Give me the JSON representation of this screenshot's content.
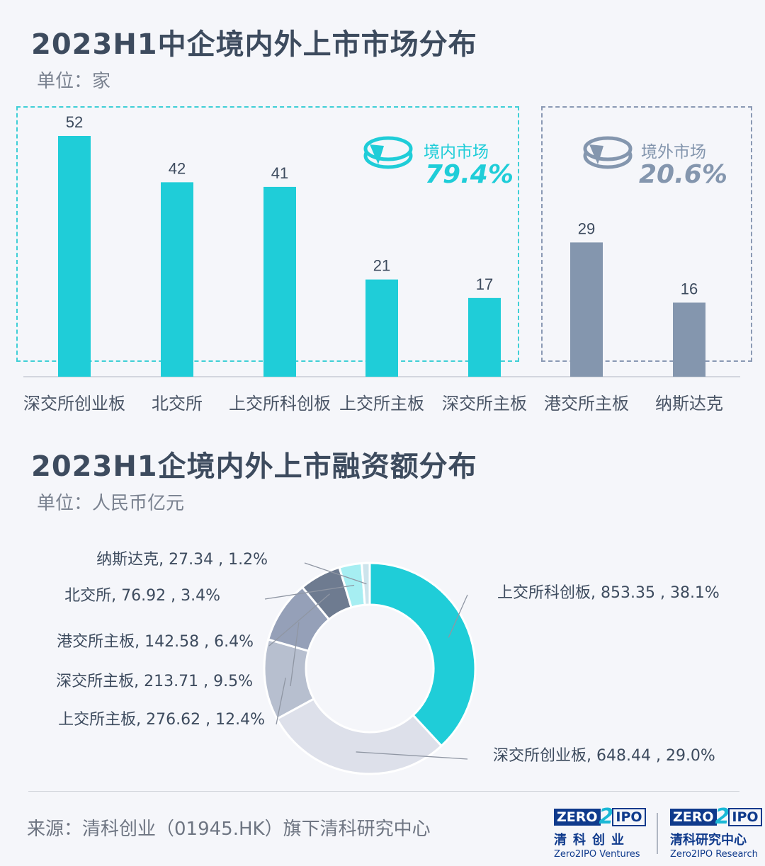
{
  "chart1": {
    "title": "2023H1中企境内外上市市场分布",
    "unit": "单位：家",
    "domestic_label": "境内市场",
    "domestic_pct": "79.4%",
    "overseas_label": "境外市场",
    "overseas_pct": "20.6%"
  },
  "chart2": {
    "title": "2023H1企境内外上市融资额分布",
    "unit": "单位：人民币亿元"
  },
  "chart_data": [
    {
      "type": "bar",
      "categories": [
        "深交所创业板",
        "北交所",
        "上交所科创板",
        "上交所主板",
        "深交所主板",
        "港交所主板",
        "纳斯达克"
      ],
      "values": [
        52,
        42,
        41,
        21,
        17,
        29,
        16
      ],
      "groups": [
        "境内市场",
        "境内市场",
        "境内市场",
        "境内市场",
        "境内市场",
        "境外市场",
        "境外市场"
      ],
      "title": "2023H1中企境内外上市市场分布",
      "ylabel": "单位：家",
      "ylim": [
        0,
        52
      ],
      "grid": false,
      "colors": {
        "境内市场": "#1fcdd8",
        "境外市场": "#8496ae"
      }
    },
    {
      "type": "pie",
      "donut": true,
      "title": "2023H1企境内外上市融资额分布",
      "unit": "单位：人民币亿元",
      "slices": [
        {
          "label": "上交所科创板, 853.35 , 38.1%",
          "name": "上交所科创板",
          "value": 853.35,
          "pct": 38.1,
          "color": "#1fcdd8"
        },
        {
          "label": "深交所创业板, 648.44 , 29.0%",
          "name": "深交所创业板",
          "value": 648.44,
          "pct": 29.0,
          "color": "#dde0ea"
        },
        {
          "label": "上交所主板, 276.62 , 12.4%",
          "name": "上交所主板",
          "value": 276.62,
          "pct": 12.4,
          "color": "#b7bfcf"
        },
        {
          "label": "深交所主板, 213.71 , 9.5%",
          "name": "深交所主板",
          "value": 213.71,
          "pct": 9.5,
          "color": "#95a0b8"
        },
        {
          "label": "港交所主板, 142.58 , 6.4%",
          "name": "港交所主板",
          "value": 142.58,
          "pct": 6.4,
          "color": "#6e7b90"
        },
        {
          "label": "北交所, 76.92 , 3.4%",
          "name": "北交所",
          "value": 76.92,
          "pct": 3.4,
          "color": "#a6eef2"
        },
        {
          "label": "纳斯达克, 27.34 , 1.2%",
          "name": "纳斯达克",
          "value": 27.34,
          "pct": 1.2,
          "color": "#cde4ec"
        }
      ]
    }
  ],
  "footer": {
    "source": "来源：清科创业（01945.HK）旗下清科研究中心",
    "logo1": {
      "zero": "ZERO",
      "two": "2",
      "ipo": "IPO",
      "cn": "清科创业",
      "en": "Zero2IPO Ventures"
    },
    "logo2": {
      "zero": "ZERO",
      "two": "2",
      "ipo": "IPO",
      "cn": "清科研究中心",
      "en": "Zero2IPO Research"
    }
  }
}
